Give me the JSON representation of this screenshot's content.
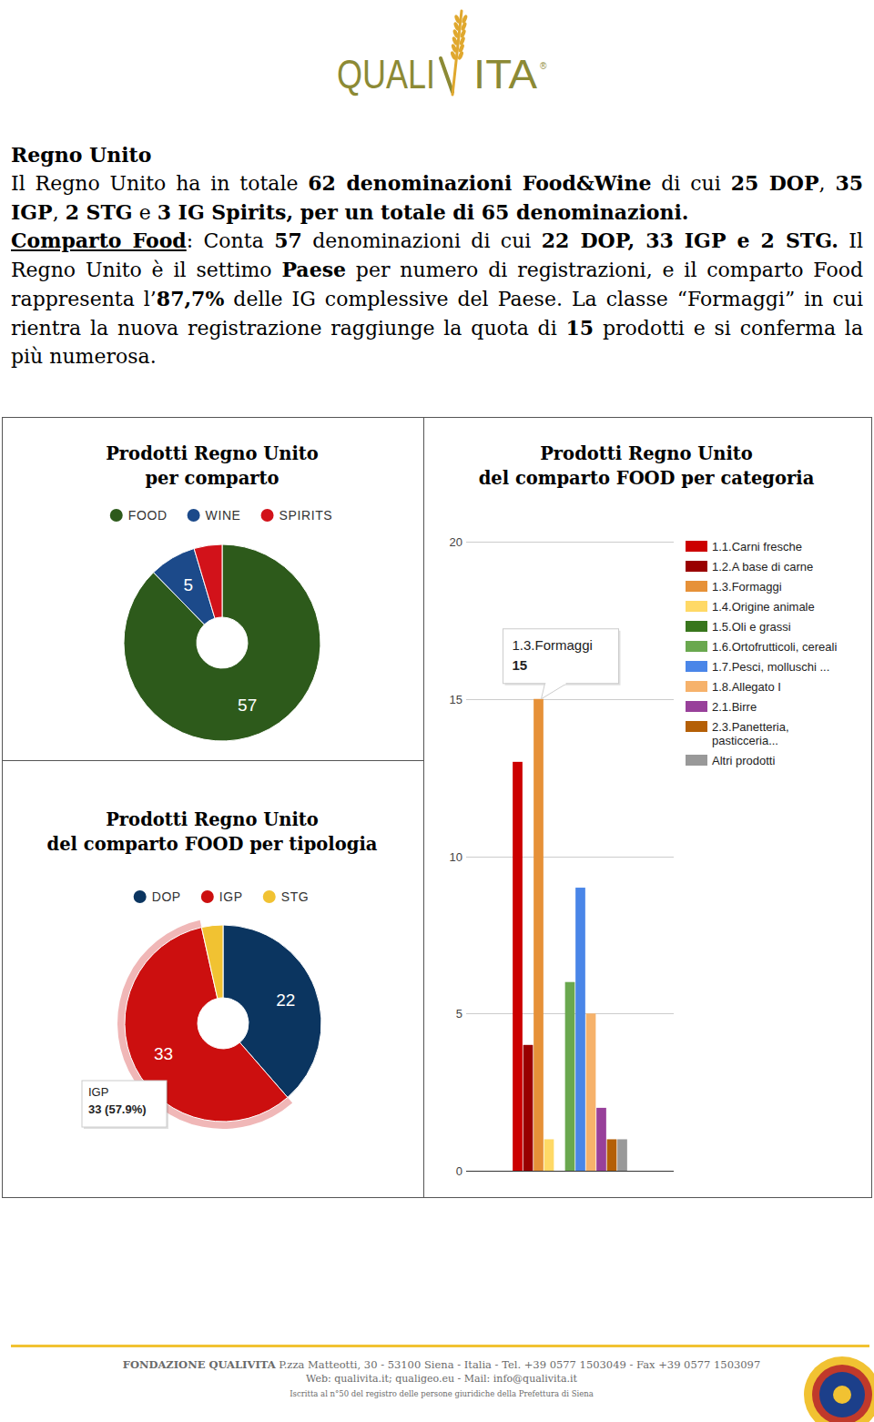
{
  "header": {
    "logo": [
      "QUALI",
      "ITA"
    ],
    "logo_mark": "®"
  },
  "title": "Regno Unito",
  "paragraphs": [
    [
      {
        "text": "Il Regno Unito ha in totale "
      },
      {
        "text": "62 denominazioni Food&Wine",
        "bold": true
      },
      {
        "text": " di cui "
      },
      {
        "text": "25 DOP",
        "bold": true
      },
      {
        "text": ", "
      },
      {
        "text": "35 IGP",
        "bold": true
      },
      {
        "text": ", "
      },
      {
        "text": "2 STG",
        "bold": true
      },
      {
        "text": " e "
      },
      {
        "text": "3 IG Spirits, per un totale di 65 denominazioni.",
        "bold": true
      }
    ],
    [
      {
        "text": "Comparto Food",
        "bold": true,
        "underline": true
      },
      {
        "text": ": Conta "
      },
      {
        "text": "57",
        "bold": true
      },
      {
        "text": " denominazioni di cui "
      },
      {
        "text": "22 DOP, 33 IGP e 2 STG.",
        "bold": true
      },
      {
        "text": " Il Regno Unito è il settimo "
      },
      {
        "text": "Paese",
        "bold": true
      },
      {
        "text": " per numero di registrazioni, e il comparto Food rappresenta l’"
      },
      {
        "text": "87,7%",
        "bold": true
      },
      {
        "text": " delle IG complessive del Paese. La classe “Formaggi” in cui rientra la nuova registrazione raggiunge la quota di "
      },
      {
        "text": "15",
        "bold": true
      },
      {
        "text": " prodotti e si conferma la più numerosa."
      }
    ]
  ],
  "chart_data": [
    {
      "type": "pie",
      "title": [
        "Prodotti Regno Unito",
        "per comparto"
      ],
      "categories": [
        "FOOD",
        "WINE",
        "SPIRITS"
      ],
      "values": [
        57,
        5,
        3
      ],
      "colors": [
        "#2d5a1b",
        "#1c4a8a",
        "#d2121a"
      ],
      "data_labels": true,
      "legend": "top"
    },
    {
      "type": "pie",
      "title": [
        "Prodotti Regno Unito",
        "del comparto FOOD per tipologia"
      ],
      "categories": [
        "DOP",
        "IGP",
        "STG"
      ],
      "values": [
        22,
        33,
        2
      ],
      "colors": [
        "#0b3560",
        "#cc0f0f",
        "#f1c232"
      ],
      "data_labels": true,
      "legend": "top",
      "annotations": [
        {
          "text": "IGP"
        },
        {
          "text": "33 (57.9%)"
        }
      ]
    },
    {
      "type": "bar",
      "title": [
        "Prodotti Regno Unito",
        "del comparto FOOD per categoria"
      ],
      "categories": [
        null
      ],
      "series": [
        {
          "name": "1.1.Carni fresche",
          "color": "#cc0000",
          "values": [
            13
          ]
        },
        {
          "name": "1.2.A base di carne",
          "color": "#990000",
          "values": [
            4
          ]
        },
        {
          "name": "1.3.Formaggi",
          "color": "#e69138",
          "values": [
            15
          ]
        },
        {
          "name": "1.4.Origine animale",
          "color": "#ffd966",
          "values": [
            1
          ]
        },
        {
          "name": "1.5.Oli e grassi",
          "color": "#38761d",
          "values": [
            0
          ]
        },
        {
          "name": "1.6.Ortofrutticoli, cereali",
          "color": "#6aa84f",
          "values": [
            6
          ]
        },
        {
          "name": "1.7.Pesci, molluschi ...",
          "color": "#4a86e8",
          "values": [
            9
          ]
        },
        {
          "name": "1.8.Allegato I",
          "color": "#f6b26b",
          "values": [
            5
          ]
        },
        {
          "name": "2.1.Birre",
          "color": "#98409a",
          "values": [
            2
          ]
        },
        {
          "name": "2.3.Panetteria, pasticceria...",
          "color": "#b45f06",
          "values": [
            1
          ]
        },
        {
          "name": "Altri prodotti",
          "color": "#999999",
          "values": [
            1
          ]
        }
      ],
      "ylim": [
        0,
        20
      ],
      "yticks": [
        0,
        5,
        10,
        15,
        20
      ],
      "grid": true,
      "legend": "right",
      "annotations": [
        {
          "text": "1.3.Formaggi"
        },
        {
          "text": "15"
        }
      ]
    }
  ],
  "footer": {
    "lines": [
      [
        {
          "text": "FONDAZIONE QUALIVITA",
          "bold": true
        },
        {
          "text": " P.zza Matteotti, 30 - 53100 Siena - Italia - Tel. +39 0577 1503049 - Fax +39 0577 1503097"
        }
      ],
      [
        {
          "text": "Web: qualivita.it; qualigeo.eu - Mail: info@qualivita.it"
        }
      ],
      [
        {
          "text": "Iscritta al n°50 del registro delle persone giuridiche della Prefettura di Siena"
        }
      ]
    ]
  }
}
